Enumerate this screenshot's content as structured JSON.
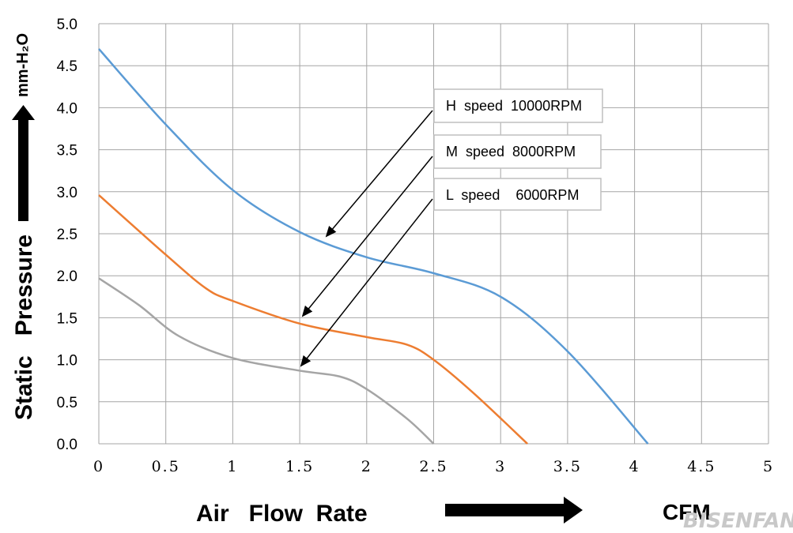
{
  "chart_data": {
    "type": "line",
    "x_ticks": [
      "0",
      "0.5",
      "1",
      "1.5",
      "2",
      "2.5",
      "3",
      "3.5",
      "4",
      "4.5",
      "5"
    ],
    "y_ticks": [
      "0.0",
      "0.5",
      "1.0",
      "1.5",
      "2.0",
      "2.5",
      "3.0",
      "3.5",
      "4.0",
      "4.5",
      "5.0"
    ],
    "xlim": [
      0,
      5
    ],
    "ylim": [
      0,
      5
    ],
    "grid": true,
    "xlabel": "Air Flow Rate",
    "xunit": "CFM",
    "ylabel": "Static Pressure",
    "yunit": "mm-H2O",
    "series": [
      {
        "name": "H speed 10000RPM",
        "color": "#5b9bd5",
        "points": [
          [
            0,
            4.7
          ],
          [
            0.5,
            3.8
          ],
          [
            1.0,
            3.02
          ],
          [
            1.5,
            2.52
          ],
          [
            2.0,
            2.22
          ],
          [
            2.5,
            2.03
          ],
          [
            3.0,
            1.75
          ],
          [
            3.5,
            1.1
          ],
          [
            4.1,
            0.0
          ]
        ]
      },
      {
        "name": "M speed 8000RPM",
        "color": "#ed7d31",
        "points": [
          [
            0,
            2.96
          ],
          [
            0.5,
            2.25
          ],
          [
            0.8,
            1.85
          ],
          [
            1.0,
            1.7
          ],
          [
            1.5,
            1.43
          ],
          [
            2.0,
            1.27
          ],
          [
            2.3,
            1.18
          ],
          [
            2.5,
            1.0
          ],
          [
            2.8,
            0.6
          ],
          [
            3.2,
            0.0
          ]
        ]
      },
      {
        "name": "L speed 6000RPM",
        "color": "#a5a5a5",
        "points": [
          [
            0,
            1.97
          ],
          [
            0.3,
            1.65
          ],
          [
            0.6,
            1.28
          ],
          [
            1.0,
            1.02
          ],
          [
            1.5,
            0.87
          ],
          [
            1.8,
            0.8
          ],
          [
            2.0,
            0.65
          ],
          [
            2.3,
            0.3
          ],
          [
            2.5,
            0.0
          ]
        ]
      }
    ],
    "annotations": [
      {
        "label": "H speed 10000RPM",
        "points_to": [
          1.7,
          2.45
        ]
      },
      {
        "label": "M speed 8000RPM",
        "points_to": [
          1.5,
          1.5
        ]
      },
      {
        "label": "L speed 6000RPM",
        "points_to": [
          1.5,
          0.87
        ]
      }
    ]
  },
  "labels": {
    "callout_h": "H  speed  10000RPM",
    "callout_m": "M  speed  8000RPM",
    "callout_l": "L  speed    6000RPM",
    "xlabel": "Air   Flow  Rate",
    "xunit": "CFM",
    "ylabel": "Static   Pressure",
    "yunit": "mm-H₂O",
    "watermark": "BISENFAN"
  }
}
